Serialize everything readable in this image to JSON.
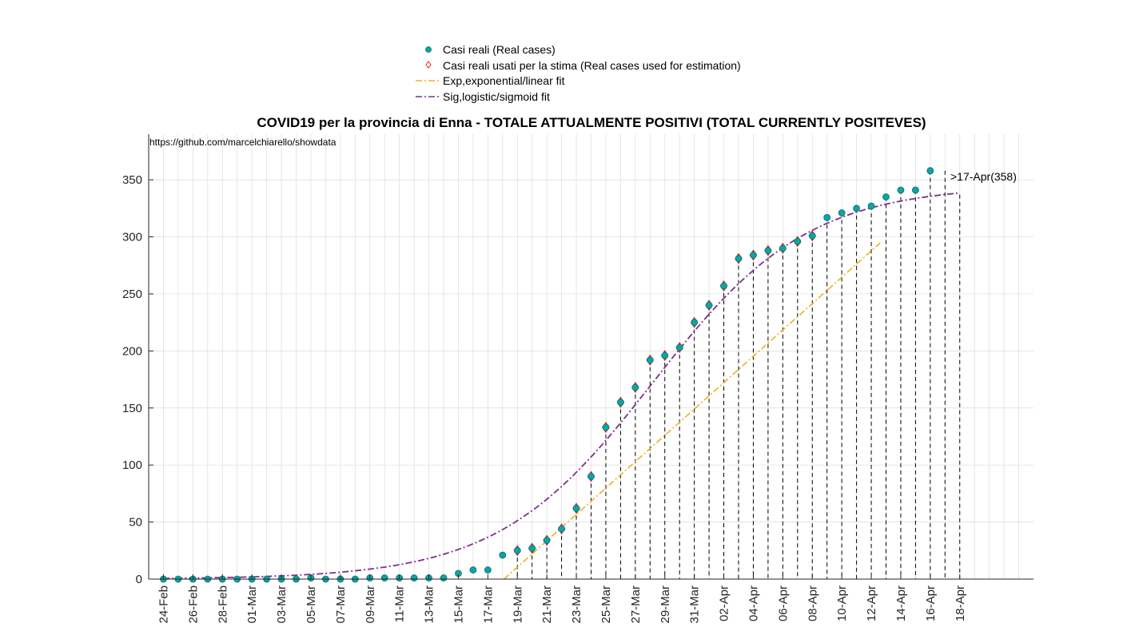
{
  "chart_data": {
    "type": "scatter",
    "title": "COVID19 per la provincia di Enna - TOTALE ATTUALMENTE POSITIVI (TOTAL CURRENTLY POSITEVES)",
    "source_note": "https://github.com/marcelchiarello/showdata",
    "xlabel": "",
    "ylabel": "",
    "ylim": [
      0,
      390
    ],
    "yticks": [
      "0",
      "50",
      "100",
      "150",
      "200",
      "250",
      "300",
      "350"
    ],
    "ytick_values": [
      0,
      50,
      100,
      150,
      200,
      250,
      300,
      350
    ],
    "xticks": [
      "24-Feb",
      "26-Feb",
      "28-Feb",
      "01-Mar",
      "03-Mar",
      "05-Mar",
      "07-Mar",
      "09-Mar",
      "11-Mar",
      "13-Mar",
      "15-Mar",
      "17-Mar",
      "19-Mar",
      "21-Mar",
      "23-Mar",
      "25-Mar",
      "27-Mar",
      "29-Mar",
      "31-Mar",
      "02-Apr",
      "04-Apr",
      "06-Apr",
      "08-Apr",
      "10-Apr",
      "12-Apr",
      "14-Apr",
      "16-Apr",
      "18-Apr"
    ],
    "xtick_days": [
      0,
      2,
      4,
      6,
      8,
      10,
      12,
      14,
      16,
      18,
      20,
      22,
      24,
      26,
      28,
      30,
      32,
      34,
      36,
      38,
      40,
      42,
      44,
      46,
      48,
      50,
      52,
      54
    ],
    "xlim_days": [
      -1,
      59
    ],
    "grid": true,
    "legend_position": "top-center",
    "series": [
      {
        "name": "Casi reali (Real cases)",
        "color": "#0fa3a3",
        "marker": "circle",
        "day_offset": 0,
        "values": [
          0,
          0,
          0,
          0,
          0,
          0,
          0,
          0,
          0,
          0,
          1,
          0,
          0,
          0,
          1,
          1,
          1,
          1,
          1,
          1,
          5,
          8,
          8,
          21,
          25,
          27,
          34,
          44,
          62,
          90,
          133,
          155,
          168,
          192,
          196,
          203,
          225,
          240,
          257,
          281,
          284,
          288,
          290,
          296,
          301,
          317,
          321,
          325,
          327,
          335,
          341,
          341,
          358
        ]
      },
      {
        "name": "Casi reali usati per la stima (Real cases used for estimation)",
        "color": "#e8231a",
        "marker": "diamond",
        "day_offset": 24,
        "values": [
          25,
          27,
          34,
          44,
          62,
          90,
          133,
          155,
          168,
          192,
          196,
          203,
          225,
          240,
          257,
          281,
          284,
          288,
          290,
          296,
          301
        ]
      },
      {
        "name": "Exp,exponential/linear fit",
        "color": "#edb120",
        "style": "dash-dot",
        "fit": "linear",
        "slope": 11.55,
        "intercept": -266.7,
        "x_range_days": [
          23.1,
          48.7
        ]
      },
      {
        "name": "Sig,logistic/sigmoid fit",
        "color": "#7e2f8e",
        "style": "dash-dot",
        "fit": "logistic",
        "L": 345,
        "k": 0.19,
        "x0": 33.2,
        "x_range_days": [
          0,
          54
        ]
      }
    ],
    "stem_days_range": [
      24,
      52
    ],
    "annotation": {
      "text": ">17-Apr(358)",
      "day": 53,
      "value": 358
    }
  }
}
